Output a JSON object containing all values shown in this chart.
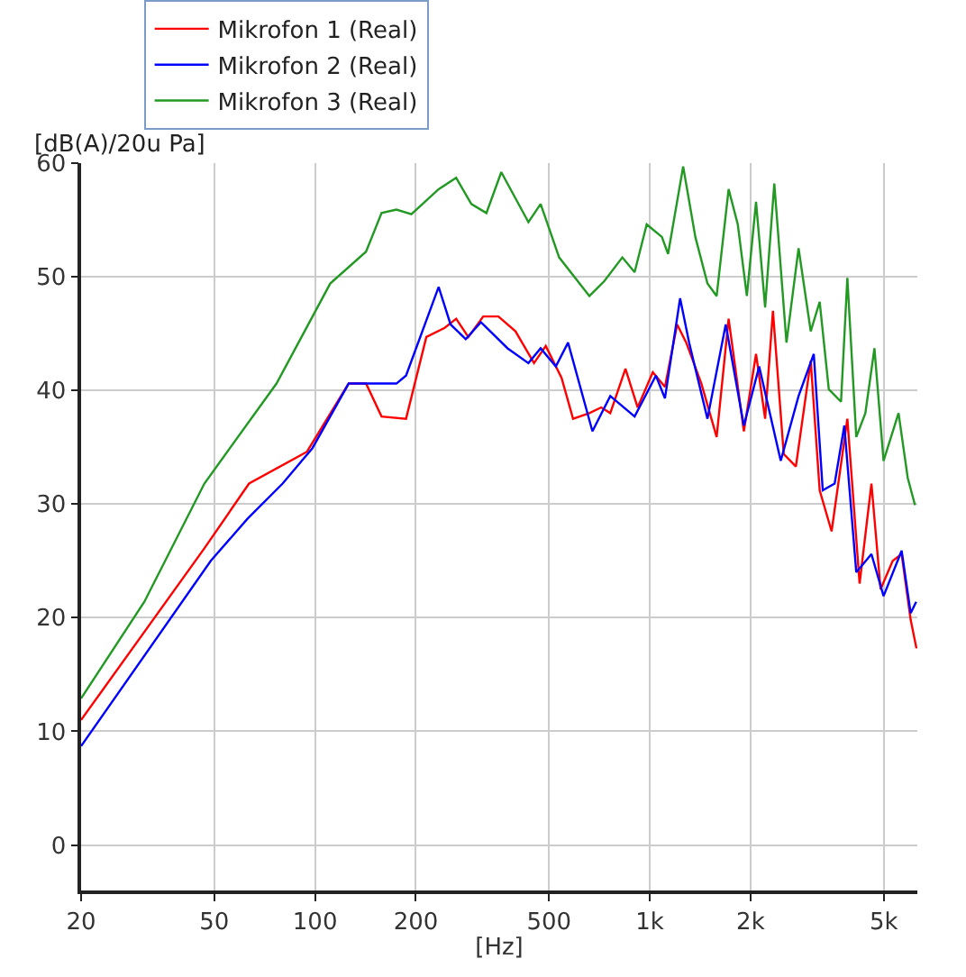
{
  "chart_data": {
    "type": "line",
    "xlabel": "[Hz]",
    "ylabel": "[dB(A)/20u Pa]",
    "log": "x",
    "grid": true,
    "legend": "top",
    "xlim": [
      20,
      6300
    ],
    "xticks": [
      20,
      50,
      100,
      200,
      500,
      {
        "value": 1000,
        "label": "1k"
      },
      {
        "value": 2000,
        "label": "2k"
      },
      {
        "value": 5000,
        "label": "5k"
      }
    ],
    "ylim": [
      -4,
      60
    ],
    "yticks": [
      0,
      10,
      20,
      30,
      40,
      50,
      60
    ],
    "series": [
      {
        "name": "Mikrofon 1 (Real)",
        "color": "#ff0000",
        "x": [
          20,
          46.7,
          63.5,
          94.6,
          126,
          142,
          158,
          187,
          215,
          244,
          264,
          287,
          318,
          353,
          397,
          451,
          489,
          545,
          590,
          660,
          716,
          762,
          846,
          920,
          1021,
          1110,
          1207,
          1285,
          1426,
          1584,
          1720,
          1910,
          2077,
          2211,
          2333,
          2513,
          2732,
          3026,
          3218,
          3493,
          3893,
          4235,
          4594,
          4893,
          5318,
          5655,
          6018,
          6262
        ],
        "values": [
          11.0,
          26.1,
          31.8,
          34.6,
          40.6,
          40.6,
          37.7,
          37.5,
          44.7,
          45.5,
          46.3,
          44.7,
          46.5,
          46.5,
          45.2,
          42.4,
          43.9,
          41.1,
          37.5,
          38.0,
          38.5,
          38.0,
          41.9,
          38.5,
          41.6,
          40.3,
          45.8,
          44.2,
          40.6,
          35.9,
          46.3,
          36.4,
          43.2,
          37.5,
          47.0,
          34.4,
          33.3,
          42.6,
          31.2,
          27.6,
          37.5,
          23.0,
          31.8,
          22.5,
          25.0,
          25.6,
          19.8,
          17.3
        ]
      },
      {
        "name": "Mikrofon 2 (Real)",
        "color": "#0000ff",
        "x": [
          20,
          48.8,
          62.8,
          80.0,
          98.1,
          126,
          175,
          187,
          234,
          254,
          282,
          313,
          376,
          434,
          472,
          524,
          570,
          674,
          762,
          901,
          1043,
          1110,
          1232,
          1311,
          1487,
          1686,
          1910,
          2122,
          2462,
          2783,
          3090,
          3287,
          3567,
          3812,
          4139,
          4594,
          4994,
          5655,
          6018,
          6250
        ],
        "values": [
          8.7,
          25.0,
          28.7,
          31.8,
          34.9,
          40.6,
          40.6,
          41.3,
          49.1,
          45.8,
          44.5,
          46.0,
          43.7,
          42.4,
          43.7,
          42.1,
          44.2,
          36.4,
          39.5,
          37.7,
          41.3,
          39.3,
          48.1,
          44.2,
          37.5,
          45.8,
          36.9,
          42.1,
          33.8,
          39.5,
          43.2,
          31.2,
          31.8,
          36.9,
          24.0,
          25.6,
          21.9,
          25.9,
          20.4,
          21.4
        ]
      },
      {
        "name": "Mikrofon 3 (Real)",
        "color": "#229922",
        "x": [
          20,
          30.9,
          46.7,
          76.7,
          111,
          142,
          158,
          175,
          194,
          234,
          264,
          293,
          325,
          360,
          434,
          472,
          536,
          660,
          731,
          828,
          901,
          979,
          1087,
          1134,
          1258,
          1368,
          1487,
          1584,
          1720,
          1832,
          1950,
          2077,
          2211,
          2355,
          2561,
          2783,
          3026,
          3218,
          3426,
          3727,
          3893,
          4139,
          4406,
          4690,
          4994,
          5536,
          5897,
          6200
        ],
        "values": [
          12.9,
          21.4,
          31.8,
          40.6,
          49.4,
          52.2,
          55.6,
          55.9,
          55.5,
          57.7,
          58.7,
          56.4,
          55.6,
          59.2,
          54.8,
          56.4,
          51.7,
          48.3,
          49.6,
          51.7,
          50.4,
          54.6,
          53.5,
          52.0,
          59.7,
          53.5,
          49.4,
          48.3,
          57.7,
          54.6,
          48.3,
          56.6,
          47.3,
          58.2,
          44.2,
          52.5,
          45.2,
          47.8,
          40.1,
          39.0,
          49.9,
          35.9,
          38.0,
          43.7,
          33.8,
          38.0,
          32.3,
          29.9
        ]
      }
    ]
  }
}
